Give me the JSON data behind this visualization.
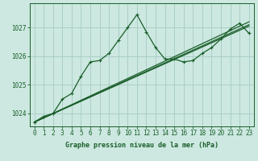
{
  "bg_color": "#cce8e0",
  "grid_color": "#aacfc8",
  "line_color": "#1a5e2a",
  "title": "Graphe pression niveau de la mer (hPa)",
  "xlim": [
    -0.5,
    23.5
  ],
  "ylim": [
    1023.55,
    1027.85
  ],
  "yticks": [
    1024,
    1025,
    1026,
    1027
  ],
  "xticks": [
    0,
    1,
    2,
    3,
    4,
    5,
    6,
    7,
    8,
    9,
    10,
    11,
    12,
    13,
    14,
    15,
    16,
    17,
    18,
    19,
    20,
    21,
    22,
    23
  ],
  "series1_x": [
    0,
    1,
    2,
    3,
    4,
    5,
    6,
    7,
    8,
    9,
    10,
    11,
    12,
    13,
    14,
    15,
    16,
    17,
    18,
    19,
    20,
    21,
    22,
    23
  ],
  "series1_y": [
    1023.7,
    1023.9,
    1024.0,
    1024.5,
    1024.7,
    1025.3,
    1025.8,
    1025.85,
    1026.1,
    1026.55,
    1027.0,
    1027.45,
    1026.85,
    1026.3,
    1025.9,
    1025.9,
    1025.8,
    1025.85,
    1026.1,
    1026.3,
    1026.6,
    1026.95,
    1027.15,
    1026.8
  ],
  "series2_x": [
    0,
    23
  ],
  "series2_y": [
    1023.7,
    1027.2
  ],
  "series3_x": [
    0,
    23
  ],
  "series3_y": [
    1023.7,
    1027.1
  ],
  "series4_x": [
    0,
    23
  ],
  "series4_y": [
    1023.7,
    1027.05
  ]
}
